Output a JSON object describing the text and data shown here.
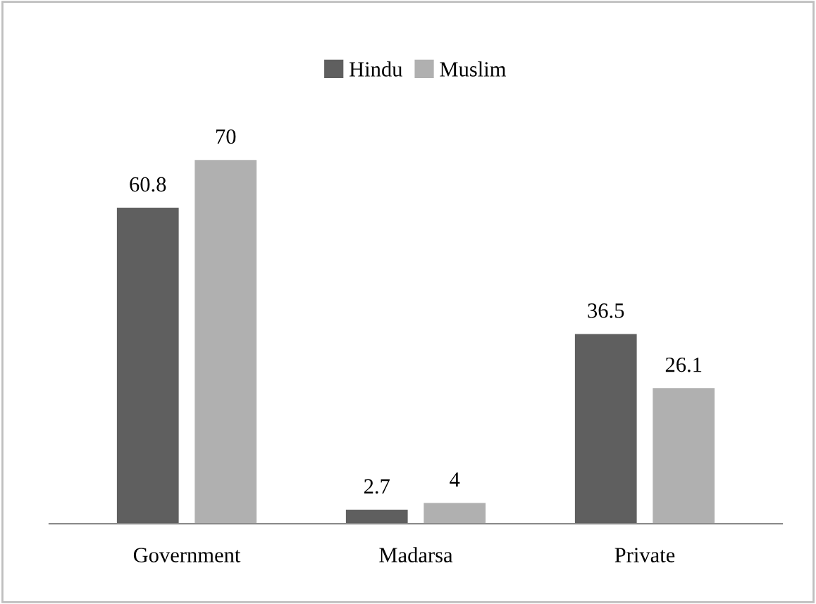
{
  "chart_data": {
    "type": "bar",
    "categories": [
      "Government",
      "Madarsa",
      "Private"
    ],
    "series": [
      {
        "name": "Hindu",
        "color": "#5f5f5f",
        "values": [
          60.8,
          2.7,
          36.5
        ]
      },
      {
        "name": "Muslim",
        "color": "#b0b0b0",
        "values": [
          70,
          4,
          26.1
        ]
      }
    ],
    "data_labels": true,
    "legend": "top",
    "grid": false
  }
}
